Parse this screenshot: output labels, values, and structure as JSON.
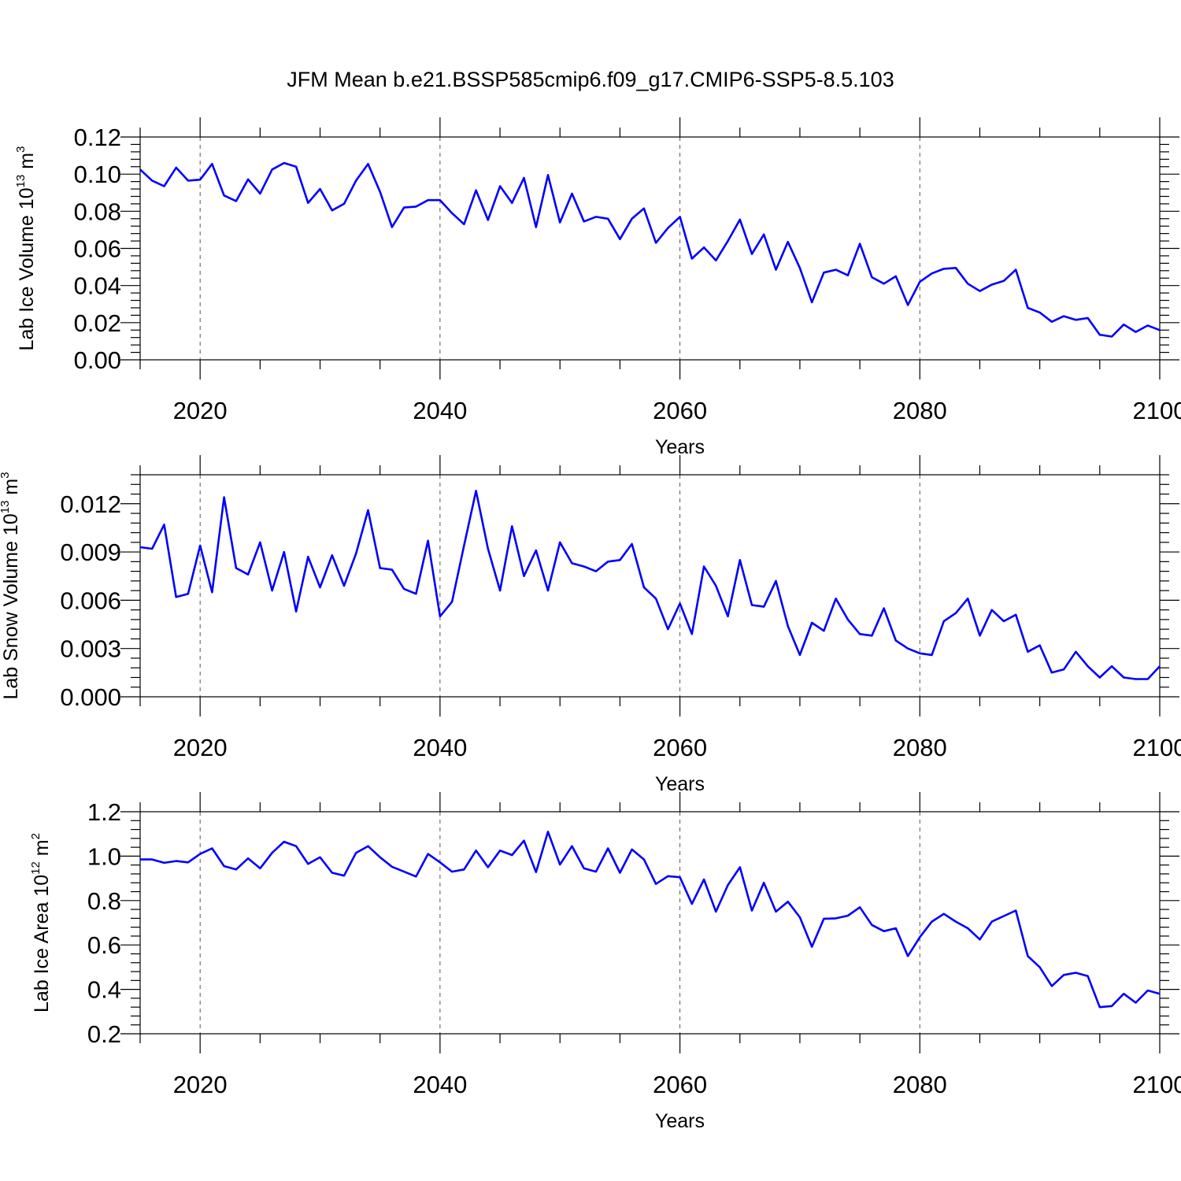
{
  "figure_title": "JFM Mean b.e21.BSSP585cmip6.f09_g17.CMIP6-SSP5-8.5.103",
  "colors": {
    "series": "#0000ff",
    "frame": "#000000",
    "grid": "#555555"
  },
  "chart_data": [
    {
      "type": "line",
      "xlabel": "Years",
      "ylabel": {
        "base": "Lab Ice Volume 10",
        "exp": "13",
        "unit": " m",
        "unit_exp": "3"
      },
      "xlim": [
        2015,
        2100
      ],
      "ylim": [
        0,
        0.12
      ],
      "xticks": [
        2020,
        2040,
        2060,
        2080,
        2100
      ],
      "xtick_labels": [
        "2020",
        "2040",
        "2060",
        "2080",
        "2100"
      ],
      "yticks": [
        0,
        0.02,
        0.04,
        0.06,
        0.08,
        0.1,
        0.12
      ],
      "ytick_labels": [
        "0.00",
        "0.02",
        "0.04",
        "0.06",
        "0.08",
        "0.10",
        "0.12"
      ],
      "grid": "dashed vertical at major x ticks",
      "x_start": 2015,
      "values": [
        0.1025,
        0.0965,
        0.0935,
        0.1035,
        0.0965,
        0.097,
        0.1055,
        0.0885,
        0.0855,
        0.0972,
        0.0895,
        0.1025,
        0.106,
        0.104,
        0.0845,
        0.092,
        0.0805,
        0.084,
        0.0965,
        0.1055,
        0.0905,
        0.0715,
        0.082,
        0.0825,
        0.086,
        0.086,
        0.079,
        0.073,
        0.0913,
        0.0753,
        0.0935,
        0.0845,
        0.098,
        0.0715,
        0.0995,
        0.074,
        0.0895,
        0.0745,
        0.077,
        0.076,
        0.065,
        0.076,
        0.0815,
        0.063,
        0.071,
        0.077,
        0.0545,
        0.0605,
        0.0535,
        0.064,
        0.0755,
        0.057,
        0.0675,
        0.0485,
        0.0635,
        0.0495,
        0.031,
        0.047,
        0.0485,
        0.0455,
        0.0625,
        0.0445,
        0.041,
        0.045,
        0.0295,
        0.042,
        0.0465,
        0.049,
        0.0495,
        0.041,
        0.037,
        0.0405,
        0.0425,
        0.0485,
        0.028,
        0.0255,
        0.0205,
        0.0235,
        0.0215,
        0.0225,
        0.0135,
        0.0125,
        0.019,
        0.015,
        0.0185,
        0.016
      ]
    },
    {
      "type": "line",
      "xlabel": "Years",
      "ylabel": {
        "base": "Lab Snow Volume 10",
        "exp": "13",
        "unit": " m",
        "unit_exp": "3"
      },
      "xlim": [
        2015,
        2100
      ],
      "ylim": [
        0,
        0.0138
      ],
      "xticks": [
        2020,
        2040,
        2060,
        2080,
        2100
      ],
      "xtick_labels": [
        "2020",
        "2040",
        "2060",
        "2080",
        "2100"
      ],
      "yticks": [
        0,
        0.003,
        0.006,
        0.009,
        0.012
      ],
      "ytick_labels": [
        "0.000",
        "0.003",
        "0.006",
        "0.009",
        "0.012"
      ],
      "grid": "dashed vertical at major x ticks",
      "x_start": 2015,
      "values": [
        0.0093,
        0.0092,
        0.0107,
        0.0062,
        0.0064,
        0.0094,
        0.0065,
        0.0124,
        0.008,
        0.0076,
        0.0096,
        0.0066,
        0.009,
        0.0053,
        0.0087,
        0.0068,
        0.0088,
        0.0069,
        0.0089,
        0.0116,
        0.008,
        0.0079,
        0.0067,
        0.0064,
        0.0097,
        0.005,
        0.0059,
        0.0094,
        0.0128,
        0.0092,
        0.0066,
        0.0106,
        0.0075,
        0.0091,
        0.0066,
        0.0096,
        0.0083,
        0.0081,
        0.0078,
        0.0084,
        0.0085,
        0.0095,
        0.0068,
        0.0061,
        0.0042,
        0.0058,
        0.0039,
        0.0081,
        0.0069,
        0.005,
        0.0085,
        0.0057,
        0.0056,
        0.0072,
        0.0044,
        0.0026,
        0.0046,
        0.0041,
        0.0061,
        0.0048,
        0.0039,
        0.0038,
        0.0055,
        0.0035,
        0.003,
        0.0027,
        0.0026,
        0.0047,
        0.0052,
        0.0061,
        0.0038,
        0.0054,
        0.0047,
        0.0051,
        0.0028,
        0.0032,
        0.0015,
        0.0017,
        0.0028,
        0.0019,
        0.0012,
        0.0019,
        0.0012,
        0.0011,
        0.0011,
        0.0019
      ]
    },
    {
      "type": "line",
      "xlabel": "Years",
      "ylabel": {
        "base": "Lab Ice Area 10",
        "exp": "12",
        "unit": " m",
        "unit_exp": "2"
      },
      "xlim": [
        2015,
        2100
      ],
      "ylim": [
        0.2,
        1.2
      ],
      "xticks": [
        2020,
        2040,
        2060,
        2080,
        2100
      ],
      "xtick_labels": [
        "2020",
        "2040",
        "2060",
        "2080",
        "2100"
      ],
      "yticks": [
        0.2,
        0.4,
        0.6,
        0.8,
        1.0,
        1.2
      ],
      "ytick_labels": [
        "0.2",
        "0.4",
        "0.6",
        "0.8",
        "1.0",
        "1.2"
      ],
      "grid": "dashed vertical at major x ticks",
      "x_start": 2015,
      "values": [
        0.985,
        0.985,
        0.97,
        0.978,
        0.972,
        1.01,
        1.035,
        0.955,
        0.94,
        0.99,
        0.945,
        1.015,
        1.065,
        1.045,
        0.965,
        0.995,
        0.925,
        0.912,
        1.015,
        1.045,
        0.995,
        0.952,
        0.93,
        0.908,
        1.01,
        0.972,
        0.93,
        0.94,
        1.025,
        0.95,
        1.025,
        1.005,
        1.07,
        0.928,
        1.11,
        0.962,
        1.045,
        0.945,
        0.93,
        1.035,
        0.925,
        1.03,
        0.985,
        0.875,
        0.91,
        0.905,
        0.785,
        0.895,
        0.75,
        0.87,
        0.95,
        0.755,
        0.88,
        0.75,
        0.795,
        0.725,
        0.592,
        0.718,
        0.72,
        0.732,
        0.77,
        0.69,
        0.662,
        0.675,
        0.55,
        0.635,
        0.705,
        0.74,
        0.705,
        0.675,
        0.625,
        0.705,
        0.73,
        0.755,
        0.55,
        0.5,
        0.415,
        0.465,
        0.475,
        0.46,
        0.32,
        0.325,
        0.38,
        0.34,
        0.395,
        0.38
      ]
    }
  ]
}
